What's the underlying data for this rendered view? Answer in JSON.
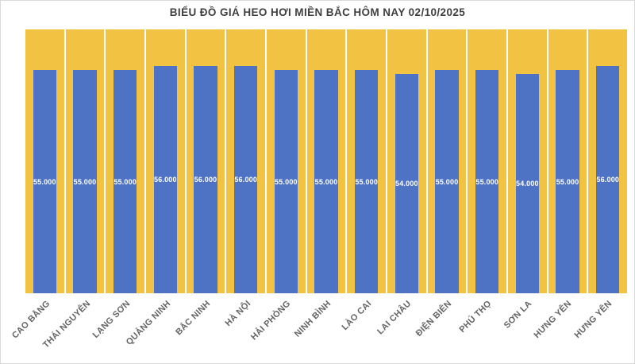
{
  "title": "BIỂU ĐỒ GIÁ HEO HƠI MIỀN BẮC HÔM NAY 02/10/2025",
  "chart_data": {
    "type": "bar",
    "title": "BIỂU ĐỒ GIÁ HEO HƠI MIỀN BẮC HÔM NAY 02/10/2025",
    "categories": [
      "CAO BẰNG",
      "THÁI NGUYÊN",
      "LẠNG SƠN",
      "QUẢNG NINH",
      "BẮC NINH",
      "HÀ NỘI",
      "HẢI PHÒNG",
      "NINH BÌNH",
      "LÀO CAI",
      "LAI CHÂU",
      "ĐIỆN BIÊN",
      "PHÚ THỌ",
      "SƠN LA",
      "HƯNG YÊN",
      "HƯNG YÊN"
    ],
    "values": [
      55000,
      55000,
      55000,
      56000,
      56000,
      56000,
      55000,
      55000,
      55000,
      54000,
      55000,
      55000,
      54000,
      55000,
      56000
    ],
    "value_labels": [
      "55.000",
      "55.000",
      "55.000",
      "56.000",
      "56.000",
      "56.000",
      "55.000",
      "55.000",
      "55.000",
      "54.000",
      "55.000",
      "55.000",
      "54.000",
      "55.000",
      "56.000"
    ],
    "xlabel": "",
    "ylabel": "",
    "ylim": [
      0,
      65000
    ],
    "grid": "white vertical separators between category columns",
    "legend": "none",
    "value_label_position": "center-of-bar",
    "x_tick_rotation_deg": -45,
    "colors": {
      "bar": "#4e73c4",
      "plot_background": "#f2c243",
      "column_separator": "#ffffff",
      "value_label_text": "#ffffff",
      "title_text": "#3f3f3f",
      "axis_label_text": "#646464",
      "chart_background": "#ffffff",
      "chart_border": "#d9d9d9"
    }
  }
}
